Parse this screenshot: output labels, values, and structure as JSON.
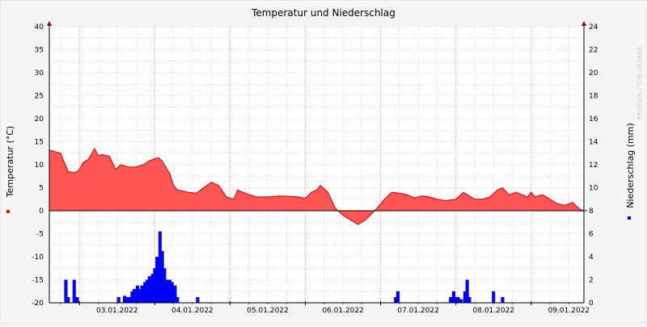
{
  "watermark": "RRDTOOL / TOBI OETIKER",
  "chart_data": {
    "type": "area",
    "title": "Temperatur und Niederschlag",
    "ylabel_left": "Temperatur (°C)",
    "ylabel_right": "Niederschlag (mm)",
    "ylim_left": [
      -20,
      40
    ],
    "ylim_right": [
      0,
      24
    ],
    "yticks_left": [
      40,
      35,
      30,
      25,
      20,
      15,
      10,
      5,
      0,
      -5,
      -10,
      -15,
      -20
    ],
    "yticks_right": [
      24,
      22,
      20,
      18,
      16,
      14,
      12,
      10,
      8,
      6,
      4,
      2,
      0
    ],
    "x_tick_labels": [
      "03.01.2022",
      "04.01.2022",
      "05.01.2022",
      "06.01.2022",
      "07.01.2022",
      "08.01.2022",
      "09.01.2022"
    ],
    "xlim_days": [
      2.6,
      9.7
    ],
    "grid": true,
    "colors": {
      "temperature": "#ff5555",
      "temperature_line": "#cc0000",
      "precipitation": "#0000ff",
      "grid": "#ff9999"
    },
    "series": [
      {
        "kind": "area",
        "axis": "left",
        "x_days": [
          2.6,
          2.75,
          2.8,
          2.85,
          2.95,
          3.0,
          3.05,
          3.12,
          3.2,
          3.25,
          3.3,
          3.4,
          3.48,
          3.55,
          3.65,
          3.75,
          3.85,
          3.92,
          4.0,
          4.05,
          4.1,
          4.2,
          4.25,
          4.3,
          4.45,
          4.55,
          4.65,
          4.75,
          4.85,
          4.95,
          5.05,
          5.1,
          5.2,
          5.35,
          5.5,
          5.65,
          5.8,
          5.9,
          6.0,
          6.08,
          6.15,
          6.2,
          6.3,
          6.4,
          6.5,
          6.6,
          6.7,
          6.8,
          6.95,
          7.05,
          7.15,
          7.25,
          7.35,
          7.45,
          7.55,
          7.65,
          7.75,
          7.85,
          7.92,
          8.0,
          8.1,
          8.15,
          8.25,
          8.35,
          8.45,
          8.55,
          8.62,
          8.7,
          8.8,
          8.95,
          9.0,
          9.05,
          9.15,
          9.25,
          9.35,
          9.45,
          9.55,
          9.6,
          9.65,
          9.7
        ],
        "values": [
          13.2,
          12.5,
          10.5,
          8.5,
          8.3,
          9.0,
          10.5,
          11.2,
          13.5,
          12.0,
          12.2,
          11.8,
          9.0,
          10.0,
          9.5,
          9.5,
          10.0,
          10.8,
          11.3,
          11.5,
          10.8,
          8.0,
          5.5,
          4.5,
          4.0,
          3.8,
          5.0,
          6.2,
          5.5,
          3.0,
          2.5,
          4.5,
          3.8,
          3.0,
          3.0,
          3.2,
          3.1,
          3.0,
          2.7,
          4.0,
          4.5,
          5.5,
          4.0,
          0.5,
          -1.0,
          -2.0,
          -3.0,
          -2.0,
          0.5,
          2.5,
          4.0,
          3.8,
          3.5,
          2.8,
          3.2,
          3.0,
          2.5,
          2.2,
          2.3,
          2.5,
          4.0,
          3.5,
          2.5,
          2.5,
          3.0,
          4.5,
          5.0,
          3.5,
          4.0,
          3.0,
          4.0,
          3.0,
          3.5,
          2.5,
          1.5,
          1.2,
          1.8,
          1.0,
          0.3,
          0.0
        ]
      },
      {
        "kind": "bar",
        "axis": "right",
        "x_days": [
          2.82,
          2.85,
          2.93,
          2.97,
          3.52,
          3.6,
          3.63,
          3.67,
          3.7,
          3.73,
          3.77,
          3.8,
          3.83,
          3.87,
          3.9,
          3.93,
          3.97,
          4.0,
          4.03,
          4.07,
          4.1,
          4.13,
          4.17,
          4.2,
          4.23,
          4.27,
          4.3,
          4.57,
          7.2,
          7.23,
          7.93,
          7.97,
          8.0,
          8.03,
          8.07,
          8.12,
          8.15,
          8.18,
          8.5,
          8.62
        ],
        "values": [
          2.0,
          0.5,
          2.0,
          0.5,
          0.5,
          0.6,
          0.5,
          0.5,
          1.0,
          1.2,
          1.5,
          1.2,
          1.5,
          1.8,
          2.0,
          2.3,
          2.5,
          3.0,
          4.0,
          6.2,
          4.5,
          3.0,
          2.0,
          2.0,
          1.8,
          1.5,
          0.5,
          0.5,
          0.5,
          1.0,
          0.5,
          1.0,
          0.5,
          0.5,
          0.3,
          1.0,
          2.0,
          0.5,
          1.0,
          0.5
        ]
      }
    ]
  }
}
